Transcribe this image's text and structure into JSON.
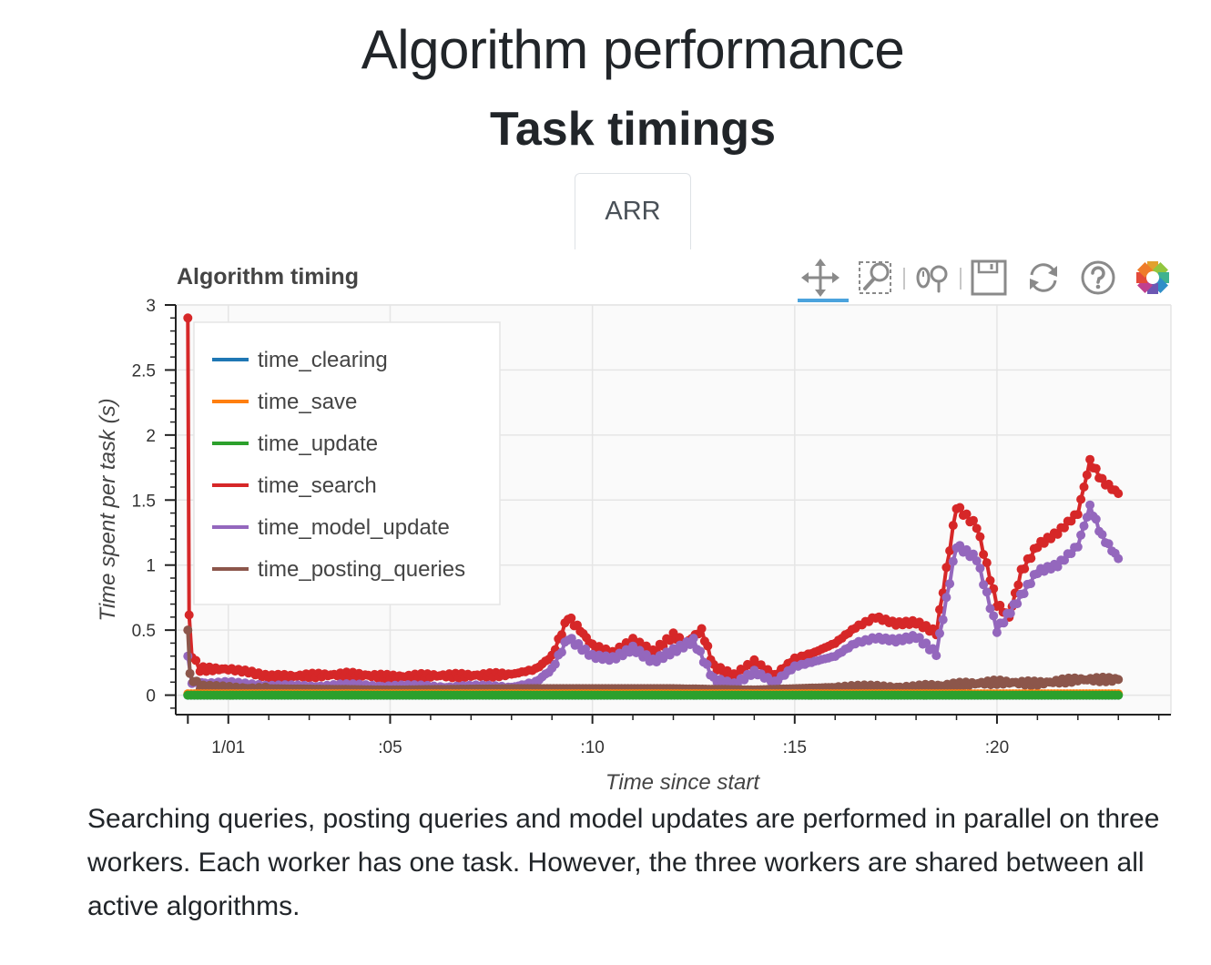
{
  "page": {
    "title": "Algorithm performance",
    "subtitle": "Task timings",
    "tab_label": "ARR",
    "description": "Searching queries, posting queries and model updates are performed in parallel on three workers. Each worker has one task. However, the three workers are shared between all active algorithms."
  },
  "toolbar": {
    "tools": [
      {
        "name": "pan-icon",
        "active": true
      },
      {
        "name": "box-zoom-icon",
        "active": false
      },
      {
        "name": "wheel-zoom-icon",
        "active": false
      },
      {
        "name": "save-icon",
        "active": false
      },
      {
        "name": "reset-icon",
        "active": false
      },
      {
        "name": "help-icon",
        "active": false
      },
      {
        "name": "bokeh-logo-icon",
        "active": false
      }
    ]
  },
  "chart_data": {
    "type": "line",
    "title": "Algorithm timing",
    "xlabel": "Time since start",
    "ylabel": "Time spent per task (s)",
    "xlim": [
      -0.3,
      24.3
    ],
    "ylim": [
      -0.15,
      3.0
    ],
    "x_ticks": [
      1,
      5,
      10,
      15,
      20
    ],
    "x_tick_labels": [
      "1/01",
      ":05",
      ":10",
      ":15",
      ":20"
    ],
    "y_ticks": [
      0,
      0.5,
      1,
      1.5,
      2,
      2.5,
      3
    ],
    "y_tick_labels": [
      "0",
      "0.5",
      "1",
      "1.5",
      "2",
      "2.5",
      "3"
    ],
    "grid": true,
    "legend_position": "top-left",
    "series": [
      {
        "name": "time_clearing",
        "color": "#1f77b4",
        "points": [
          [
            0,
            0.0
          ],
          [
            2,
            0.0
          ],
          [
            5,
            0.0
          ],
          [
            8,
            0.0
          ],
          [
            11,
            0.0
          ],
          [
            14,
            0.0
          ],
          [
            17,
            0.0
          ],
          [
            20,
            0.0
          ],
          [
            23,
            0.0
          ]
        ]
      },
      {
        "name": "time_save",
        "color": "#ff7f0e",
        "points": [
          [
            0,
            0.01
          ],
          [
            2,
            0.01
          ],
          [
            5,
            0.01
          ],
          [
            8,
            0.01
          ],
          [
            11,
            0.01
          ],
          [
            14,
            0.01
          ],
          [
            17,
            0.01
          ],
          [
            20,
            0.01
          ],
          [
            23,
            0.01
          ]
        ]
      },
      {
        "name": "time_update",
        "color": "#2ca02c",
        "points": [
          [
            0,
            0.0
          ],
          [
            2,
            0.0
          ],
          [
            5,
            0.0
          ],
          [
            8,
            0.0
          ],
          [
            11,
            0.0
          ],
          [
            14,
            0.0
          ],
          [
            17,
            0.0
          ],
          [
            20,
            0.0
          ],
          [
            23,
            0.0
          ]
        ]
      },
      {
        "name": "time_search",
        "color": "#d62728",
        "points": [
          [
            0,
            2.9
          ],
          [
            0.03,
            0.6
          ],
          [
            0.1,
            0.3
          ],
          [
            0.3,
            0.2
          ],
          [
            1,
            0.2
          ],
          [
            1.5,
            0.18
          ],
          [
            2,
            0.14
          ],
          [
            3,
            0.15
          ],
          [
            4,
            0.16
          ],
          [
            5,
            0.14
          ],
          [
            6,
            0.15
          ],
          [
            7,
            0.15
          ],
          [
            8,
            0.16
          ],
          [
            8.6,
            0.2
          ],
          [
            9,
            0.3
          ],
          [
            9.4,
            0.6
          ],
          [
            9.7,
            0.5
          ],
          [
            10,
            0.38
          ],
          [
            10.5,
            0.32
          ],
          [
            11,
            0.42
          ],
          [
            11.5,
            0.33
          ],
          [
            12,
            0.46
          ],
          [
            12.3,
            0.4
          ],
          [
            12.7,
            0.5
          ],
          [
            13,
            0.22
          ],
          [
            13.5,
            0.15
          ],
          [
            14,
            0.26
          ],
          [
            14.5,
            0.15
          ],
          [
            15,
            0.28
          ],
          [
            15.5,
            0.33
          ],
          [
            16,
            0.4
          ],
          [
            16.5,
            0.52
          ],
          [
            17,
            0.6
          ],
          [
            17.5,
            0.55
          ],
          [
            18,
            0.56
          ],
          [
            18.5,
            0.48
          ],
          [
            19,
            1.45
          ],
          [
            19.5,
            1.3
          ],
          [
            20,
            0.7
          ],
          [
            20.3,
            0.6
          ],
          [
            20.6,
            0.95
          ],
          [
            21,
            1.15
          ],
          [
            21.5,
            1.25
          ],
          [
            22,
            1.4
          ],
          [
            22.3,
            1.8
          ],
          [
            22.6,
            1.65
          ],
          [
            23,
            1.55
          ]
        ]
      },
      {
        "name": "time_model_update",
        "color": "#9467bd",
        "points": [
          [
            0,
            0.3
          ],
          [
            0.1,
            0.1
          ],
          [
            0.5,
            0.09
          ],
          [
            1,
            0.1
          ],
          [
            1.5,
            0.08
          ],
          [
            2,
            0.06
          ],
          [
            4,
            0.07
          ],
          [
            6,
            0.06
          ],
          [
            8,
            0.06
          ],
          [
            8.6,
            0.1
          ],
          [
            9,
            0.2
          ],
          [
            9.4,
            0.44
          ],
          [
            10,
            0.3
          ],
          [
            10.5,
            0.28
          ],
          [
            11,
            0.36
          ],
          [
            11.5,
            0.26
          ],
          [
            12,
            0.34
          ],
          [
            12.5,
            0.42
          ],
          [
            13,
            0.12
          ],
          [
            13.5,
            0.08
          ],
          [
            14,
            0.18
          ],
          [
            14.5,
            0.1
          ],
          [
            15,
            0.22
          ],
          [
            15.5,
            0.26
          ],
          [
            16,
            0.3
          ],
          [
            16.5,
            0.4
          ],
          [
            17,
            0.44
          ],
          [
            17.5,
            0.42
          ],
          [
            18,
            0.45
          ],
          [
            18.5,
            0.32
          ],
          [
            19,
            1.15
          ],
          [
            19.5,
            1.05
          ],
          [
            20,
            0.5
          ],
          [
            20.5,
            0.72
          ],
          [
            21,
            0.95
          ],
          [
            21.5,
            1.0
          ],
          [
            22,
            1.15
          ],
          [
            22.3,
            1.45
          ],
          [
            22.6,
            1.22
          ],
          [
            23,
            1.05
          ]
        ]
      },
      {
        "name": "time_posting_queries",
        "color": "#8c564b",
        "points": [
          [
            0,
            0.5
          ],
          [
            0.05,
            0.15
          ],
          [
            0.3,
            0.06
          ],
          [
            2,
            0.05
          ],
          [
            5,
            0.04
          ],
          [
            8,
            0.05
          ],
          [
            10,
            0.05
          ],
          [
            12,
            0.05
          ],
          [
            14,
            0.04
          ],
          [
            16,
            0.06
          ],
          [
            18,
            0.06
          ],
          [
            19,
            0.08
          ],
          [
            20,
            0.1
          ],
          [
            21,
            0.09
          ],
          [
            22,
            0.12
          ],
          [
            23,
            0.12
          ]
        ]
      }
    ]
  }
}
